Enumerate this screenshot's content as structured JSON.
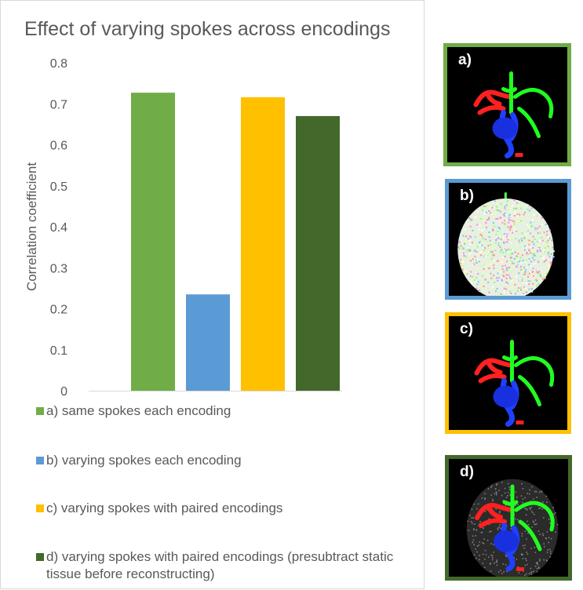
{
  "chart_data": {
    "type": "bar",
    "title": "Effect of varying spokes across encodings",
    "xlabel": "",
    "ylabel": "Correlation coefficient",
    "ylim": [
      0,
      0.8
    ],
    "yticks": [
      "0",
      "0.1",
      "0.2",
      "0.3",
      "0.4",
      "0.5",
      "0.6",
      "0.7",
      "0.8"
    ],
    "grid": false,
    "legend_position": "bottom",
    "series": [
      {
        "name": "a) same spokes each encoding",
        "value": 0.727,
        "color": "#70ad47"
      },
      {
        "name": "b) varying spokes each encoding",
        "value": 0.235,
        "color": "#5b9bd5"
      },
      {
        "name": "c) varying spokes with paired encodings",
        "value": 0.716,
        "color": "#ffc000"
      },
      {
        "name": "d) varying spokes with paired encodings (presubtract static tissue before reconstructing)",
        "value": 0.67,
        "color": "#43682b"
      }
    ]
  },
  "thumbnails": [
    {
      "label": "a)",
      "border_color": "#70ad47",
      "style": "vessels"
    },
    {
      "label": "b)",
      "border_color": "#5b9bd5",
      "style": "noise"
    },
    {
      "label": "c)",
      "border_color": "#ffc000",
      "style": "vessels"
    },
    {
      "label": "d)",
      "border_color": "#43682b",
      "style": "vessels-gray"
    }
  ]
}
